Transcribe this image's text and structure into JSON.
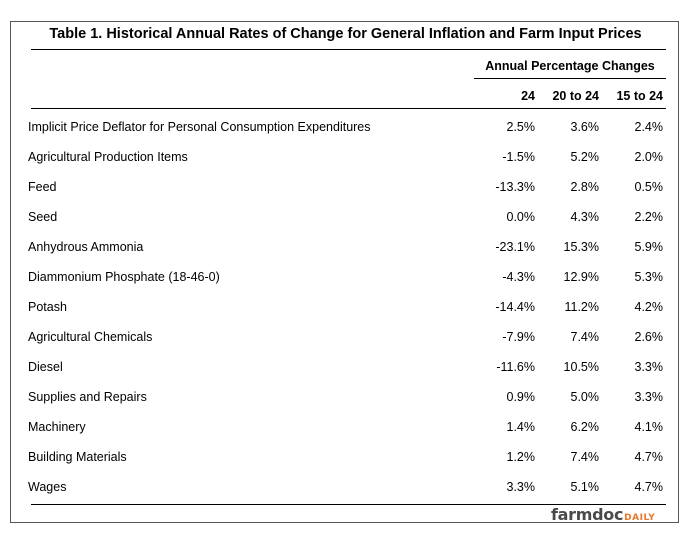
{
  "title": "Table 1.  Historical Annual Rates of Change for General Inflation and Farm Input Prices",
  "group_header": "Annual Percentage Changes",
  "columns": [
    "24",
    "20 to 24",
    "15 to 24"
  ],
  "rows": [
    {
      "label": "Implicit Price Deflator for Personal Consumption Expenditures",
      "values": [
        "2.5%",
        "3.6%",
        "2.4%"
      ]
    },
    {
      "label": "Agricultural Production Items",
      "values": [
        "-1.5%",
        "5.2%",
        "2.0%"
      ]
    },
    {
      "label": "Feed",
      "values": [
        "-13.3%",
        "2.8%",
        "0.5%"
      ]
    },
    {
      "label": "Seed",
      "values": [
        "0.0%",
        "4.3%",
        "2.2%"
      ]
    },
    {
      "label": "Anhydrous Ammonia",
      "values": [
        "-23.1%",
        "15.3%",
        "5.9%"
      ]
    },
    {
      "label": "Diammonium Phosphate (18-46-0)",
      "values": [
        "-4.3%",
        "12.9%",
        "5.3%"
      ]
    },
    {
      "label": "Potash",
      "values": [
        "-14.4%",
        "11.2%",
        "4.2%"
      ]
    },
    {
      "label": "Agricultural Chemicals",
      "values": [
        "-7.9%",
        "7.4%",
        "2.6%"
      ]
    },
    {
      "label": "Diesel",
      "values": [
        "-11.6%",
        "10.5%",
        "3.3%"
      ]
    },
    {
      "label": "Supplies and Repairs",
      "values": [
        "0.9%",
        "5.0%",
        "3.3%"
      ]
    },
    {
      "label": "Machinery",
      "values": [
        "1.4%",
        "6.2%",
        "4.1%"
      ]
    },
    {
      "label": "Building Materials",
      "values": [
        "1.2%",
        "7.4%",
        "4.7%"
      ]
    },
    {
      "label": "Wages",
      "values": [
        "3.3%",
        "5.1%",
        "4.7%"
      ]
    }
  ],
  "logo": {
    "main": "farmdoc",
    "suffix": "DAILY",
    "main_color": "#4a4a4a",
    "suffix_color": "#e8762b"
  }
}
